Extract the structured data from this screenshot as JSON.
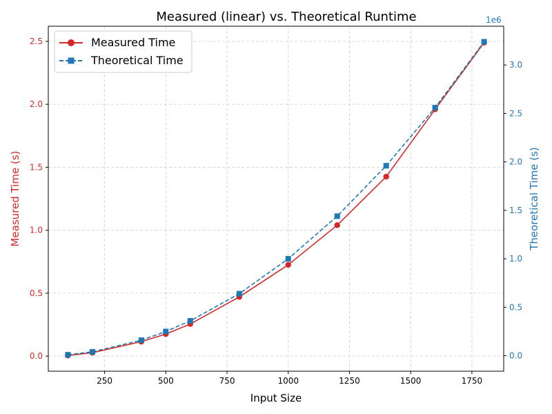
{
  "colors": {
    "measured": "#d62728",
    "theoretical": "#1f77b4",
    "grid": "#cccccc",
    "axis": "#000000"
  },
  "chart_data": {
    "type": "line",
    "title": "Measured (linear) vs. Theoretical Runtime",
    "xlabel": "Input Size",
    "ylabel_left": "Measured Time (s)",
    "ylabel_right": "Theoretical Time (s)",
    "right_axis_offset_text": "1e6",
    "x": [
      100,
      200,
      400,
      500,
      600,
      800,
      1000,
      1200,
      1400,
      1600,
      1800
    ],
    "xlim": [
      20,
      1880
    ],
    "ylim_left": [
      -0.12,
      2.62
    ],
    "ylim_right": [
      -160000,
      3400000
    ],
    "x_ticks": [
      250,
      500,
      750,
      1000,
      1250,
      1500,
      1750
    ],
    "y_ticks_left": [
      0.0,
      0.5,
      1.0,
      1.5,
      2.0,
      2.5
    ],
    "y_ticks_right": [
      0,
      500000,
      1000000,
      1500000,
      2000000,
      2500000,
      3000000
    ],
    "y_tick_labels_left": [
      "0.0",
      "0.5",
      "1.0",
      "1.5",
      "2.0",
      "2.5"
    ],
    "y_tick_labels_right": [
      "0.0",
      "0.5",
      "1.0",
      "1.5",
      "2.0",
      "2.5",
      "3.0"
    ],
    "grid": true,
    "legend_position": "top-left",
    "series": [
      {
        "name": "Measured Time",
        "axis": "left",
        "marker": "circle",
        "linestyle": "solid",
        "values": [
          0.005,
          0.027,
          0.115,
          0.175,
          0.255,
          0.47,
          0.725,
          1.04,
          1.425,
          1.96,
          2.49
        ]
      },
      {
        "name": "Theoretical Time",
        "axis": "right",
        "marker": "square",
        "linestyle": "dashed",
        "values": [
          10000,
          40000,
          160000,
          250000,
          360000,
          640000,
          1000000,
          1440000,
          1960000,
          2560000,
          3240000
        ]
      }
    ]
  }
}
